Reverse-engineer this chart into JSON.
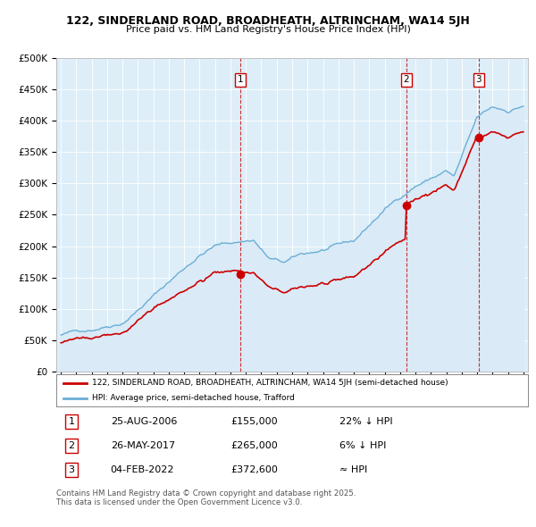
{
  "title_line1": "122, SINDERLAND ROAD, BROADHEATH, ALTRINCHAM, WA14 5JH",
  "title_line2": "Price paid vs. HM Land Registry's House Price Index (HPI)",
  "ytick_labels": [
    "£0",
    "£50K",
    "£100K",
    "£150K",
    "£200K",
    "£250K",
    "£300K",
    "£350K",
    "£400K",
    "£450K",
    "£500K"
  ],
  "yticks": [
    0,
    50000,
    100000,
    150000,
    200000,
    250000,
    300000,
    350000,
    400000,
    450000,
    500000
  ],
  "ylim": [
    0,
    500000
  ],
  "hpi_color": "#6baed6",
  "hpi_fill_color": "#daeaf7",
  "price_color": "#cc0000",
  "vline_color": "#cc0000",
  "sale_year_floats": [
    2006.646,
    2017.408,
    2022.089
  ],
  "sale_prices": [
    155000,
    265000,
    372600
  ],
  "sale_labels": [
    "1",
    "2",
    "3"
  ],
  "legend_property": "122, SINDERLAND ROAD, BROADHEATH, ALTRINCHAM, WA14 5JH (semi-detached house)",
  "legend_hpi": "HPI: Average price, semi-detached house, Trafford",
  "table_data": [
    [
      "1",
      "25-AUG-2006",
      "£155,000",
      "22% ↓ HPI"
    ],
    [
      "2",
      "26-MAY-2017",
      "£265,000",
      "6% ↓ HPI"
    ],
    [
      "3",
      "04-FEB-2022",
      "£372,600",
      "≈ HPI"
    ]
  ],
  "footnote": "Contains HM Land Registry data © Crown copyright and database right 2025.\nThis data is licensed under the Open Government Licence v3.0.",
  "background_color": "#ffffff",
  "plot_bg_color": "#ddeef8",
  "grid_color": "#ffffff",
  "x_start_year": 1995,
  "x_end_year": 2025
}
